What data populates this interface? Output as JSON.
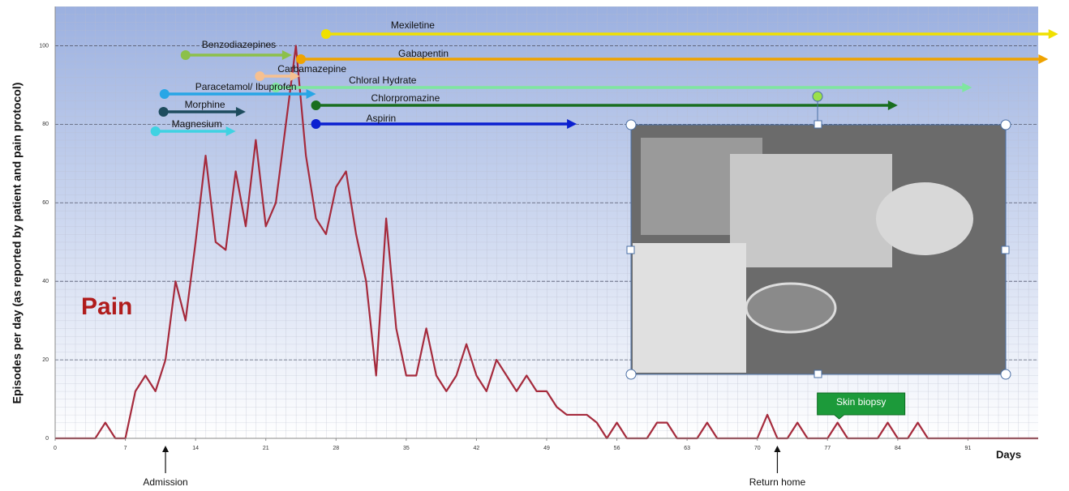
{
  "chart_data": {
    "type": "line",
    "y_label": "Episodes per day (as reported by patient and pain protocol)",
    "x_label": "Days",
    "x": [
      0,
      4,
      5,
      6,
      7,
      8,
      9,
      10,
      11,
      12,
      13,
      14,
      15,
      16,
      17,
      18,
      19,
      20,
      21,
      22,
      24,
      25,
      26,
      27,
      28,
      29,
      30,
      31,
      32,
      33,
      34,
      35,
      36,
      37,
      38,
      39,
      40,
      41,
      42,
      43,
      44,
      45,
      46,
      47,
      48,
      49,
      50,
      51,
      52,
      53,
      54,
      55,
      56,
      57,
      59,
      60,
      61,
      62,
      64,
      65,
      66,
      70,
      71,
      72,
      73,
      74,
      75,
      77,
      78,
      79,
      82,
      83,
      84,
      85,
      86,
      87,
      98
    ],
    "series": [
      {
        "name": "Pain",
        "color": "#a52a3c",
        "values": [
          0,
          0,
          4,
          0,
          0,
          12,
          16,
          12,
          20,
          40,
          30,
          50,
          72,
          50,
          48,
          68,
          54,
          76,
          54,
          60,
          100,
          72,
          56,
          52,
          64,
          68,
          52,
          40,
          16,
          56,
          28,
          16,
          16,
          28,
          16,
          12,
          16,
          24,
          16,
          12,
          20,
          16,
          12,
          16,
          12,
          12,
          8,
          6,
          6,
          6,
          4,
          0,
          4,
          0,
          0,
          4,
          4,
          0,
          0,
          4,
          0,
          0,
          6,
          0,
          0,
          4,
          0,
          0,
          4,
          0,
          0,
          4,
          0,
          0,
          4,
          0,
          0
        ]
      }
    ],
    "xlim": [
      0,
      98
    ],
    "xticks": [
      0,
      7,
      14,
      21,
      28,
      35,
      42,
      49,
      56,
      63,
      70,
      77,
      84,
      91
    ],
    "ylim": [
      0,
      110
    ],
    "yticks": [
      0,
      20,
      40,
      60,
      80,
      100
    ],
    "grid": true,
    "medications": [
      {
        "name": "Mexiletine",
        "color": "#f0e000",
        "start": 27,
        "end": 100
      },
      {
        "name": "Benzodiazepines",
        "color": "#8cc04a",
        "start": 13,
        "end": 23.6
      },
      {
        "name": "Gabapentin",
        "color": "#efa300",
        "start": 24.5,
        "end": 99
      },
      {
        "name": "Carbamazepine",
        "color": "#f6c090",
        "start": 20.4,
        "end": 24.4
      },
      {
        "name": "Chloral Hydrate",
        "color": "#7fe6a0",
        "start": 22,
        "end": 91.4
      },
      {
        "name": "Paracetamol/ Ibuprofen",
        "color": "#27a6e6",
        "start": 10.9,
        "end": 26
      },
      {
        "name": "Chlorpromazine",
        "color": "#196e1e",
        "start": 26,
        "end": 84
      },
      {
        "name": "Morphine",
        "color": "#1e4c5e",
        "start": 10.8,
        "end": 19
      },
      {
        "name": "Aspirin",
        "color": "#0a1fd0",
        "start": 26,
        "end": 52
      },
      {
        "name": "Magnesium",
        "color": "#3fd2e2",
        "start": 10,
        "end": 18
      }
    ],
    "annotations": [
      {
        "text": "Admission",
        "x": 11
      },
      {
        "text": "Return home",
        "x": 72
      }
    ],
    "callout": {
      "text": "Skin biopsy",
      "x": 78
    }
  }
}
